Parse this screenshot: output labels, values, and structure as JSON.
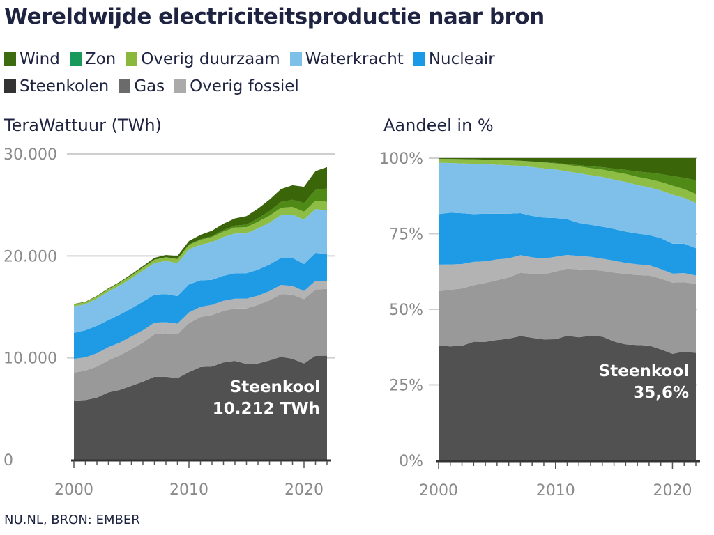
{
  "title": "Wereldwijde electriciteitsproductie naar bron",
  "legend": [
    {
      "label": "Wind",
      "color": "#3d6b10"
    },
    {
      "label": "Zon",
      "color": "#1a9a5a"
    },
    {
      "label": "Overig duurzaam",
      "color": "#8ab83c"
    },
    {
      "label": "Waterkracht",
      "color": "#7dc0e8"
    },
    {
      "label": "Nucleair",
      "color": "#1a9ae6"
    },
    {
      "label": "Steenkolen",
      "color": "#333333"
    },
    {
      "label": "Gas",
      "color": "#6b6b6b"
    },
    {
      "label": "Overig fossiel",
      "color": "#aaaaaa"
    }
  ],
  "footer": "NU.NL, BRON: EMBER",
  "chart_data": [
    {
      "type": "area",
      "stacked": true,
      "title": "TeraWattuur (TWh)",
      "ylim": [
        0,
        30000
      ],
      "yticks": [
        "0",
        "10.000",
        "20.000",
        "30.000"
      ],
      "ytick_values": [
        0,
        10000,
        20000,
        30000
      ],
      "xticks": [
        "2000",
        "2010",
        "2020"
      ],
      "grid": true,
      "annotation": {
        "line1": "Steenkool",
        "line2": "10.212 TWh"
      },
      "x": [
        2000,
        2001,
        2002,
        2003,
        2004,
        2005,
        2006,
        2007,
        2008,
        2009,
        2010,
        2011,
        2012,
        2013,
        2014,
        2015,
        2016,
        2017,
        2018,
        2019,
        2020,
        2021,
        2022
      ],
      "series": [
        {
          "name": "Steenkolen",
          "color": "#515151",
          "values": [
            5800,
            5850,
            6100,
            6600,
            6850,
            7250,
            7650,
            8150,
            8150,
            8000,
            8600,
            9100,
            9150,
            9550,
            9700,
            9400,
            9450,
            9750,
            10100,
            9900,
            9450,
            10200,
            10212
          ]
        },
        {
          "name": "Gas",
          "color": "#999999",
          "values": [
            2750,
            2900,
            3050,
            3150,
            3400,
            3600,
            3850,
            4150,
            4250,
            4300,
            4800,
            4900,
            5050,
            5050,
            5150,
            5450,
            5750,
            5900,
            6150,
            6300,
            6300,
            6500,
            6550
          ]
        },
        {
          "name": "Overig fossiel",
          "color": "#b3b3b3",
          "values": [
            1350,
            1300,
            1300,
            1300,
            1250,
            1250,
            1200,
            1150,
            1100,
            1050,
            1050,
            1000,
            1000,
            1000,
            950,
            950,
            900,
            900,
            900,
            850,
            800,
            850,
            800
          ]
        },
        {
          "name": "Nucleair",
          "color": "#1f9be6",
          "values": [
            2550,
            2650,
            2700,
            2650,
            2750,
            2750,
            2800,
            2750,
            2750,
            2700,
            2750,
            2600,
            2450,
            2450,
            2500,
            2500,
            2550,
            2600,
            2650,
            2750,
            2650,
            2750,
            2600
          ]
        },
        {
          "name": "Waterkracht",
          "color": "#7fc0ea",
          "values": [
            2600,
            2550,
            2650,
            2800,
            2850,
            2950,
            3050,
            3100,
            3250,
            3250,
            3450,
            3500,
            3700,
            3800,
            3900,
            3900,
            4050,
            4100,
            4200,
            4250,
            4350,
            4300,
            4300
          ]
        },
        {
          "name": "Overig duurzaam",
          "color": "#8dbd45",
          "values": [
            200,
            210,
            230,
            250,
            270,
            290,
            310,
            330,
            360,
            390,
            430,
            470,
            500,
            540,
            580,
            620,
            650,
            690,
            720,
            760,
            790,
            820,
            850
          ]
        },
        {
          "name": "Zon",
          "color": "#4f8a16",
          "values": [
            1,
            2,
            2,
            3,
            3,
            4,
            6,
            8,
            12,
            20,
            32,
            62,
            98,
            132,
            190,
            250,
            330,
            450,
            570,
            700,
            850,
            1050,
            1300
          ]
        },
        {
          "name": "Wind",
          "color": "#3a6609",
          "values": [
            31,
            38,
            52,
            63,
            85,
            104,
            133,
            170,
            220,
            275,
            342,
            436,
            521,
            635,
            706,
            830,
            960,
            1130,
            1270,
            1420,
            1590,
            1850,
            2100
          ]
        }
      ]
    },
    {
      "type": "area",
      "stacked": true,
      "normalized": true,
      "title": "Aandeel in %",
      "ylim": [
        0,
        100
      ],
      "yticks": [
        "0%",
        "25%",
        "50%",
        "75%",
        "100%"
      ],
      "ytick_values": [
        0,
        25,
        50,
        75,
        100
      ],
      "xticks": [
        "2000",
        "2010",
        "2020"
      ],
      "grid": true,
      "annotation": {
        "line1": "Steenkool",
        "line2": "35,6%"
      }
    }
  ]
}
